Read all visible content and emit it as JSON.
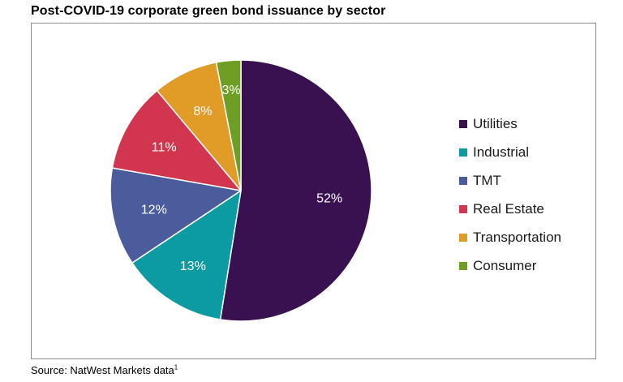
{
  "chart_data": {
    "type": "pie",
    "title": "Post-COVID-19 corporate green bond issuance by sector",
    "categories": [
      "Utilities",
      "Industrial",
      "TMT",
      "Real Estate",
      "Transportation",
      "Consumer"
    ],
    "values": [
      52,
      13,
      12,
      11,
      8,
      3
    ],
    "data_labels": [
      "52%",
      "13%",
      "12%",
      "11%",
      "8%",
      "3%"
    ],
    "colors": [
      "#3a1150",
      "#0d9ba3",
      "#4a5c9c",
      "#d2364f",
      "#e09c26",
      "#6e9e24"
    ],
    "start_angle": "12 o'clock",
    "direction": "clockwise",
    "legend_position": "right"
  },
  "source": {
    "text": "Source: NatWest Markets data",
    "footnote": "1"
  }
}
